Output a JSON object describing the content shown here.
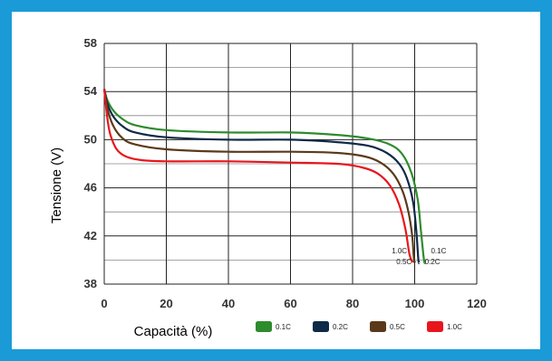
{
  "colors": {
    "frame": "#1a9bd7",
    "grid": "#222222",
    "gridMinor": "#888888",
    "series": [
      "#2e8b2e",
      "#0e2a47",
      "#5a3a1a",
      "#e8161c"
    ]
  },
  "chart_data": {
    "type": "line",
    "title": "",
    "xlabel": "Capacità (%)",
    "ylabel": "Tensione (V)",
    "xlim": [
      0,
      120
    ],
    "ylim": [
      38,
      58
    ],
    "xticks": [
      0,
      20,
      40,
      60,
      80,
      100,
      120
    ],
    "yticks": [
      38,
      42,
      46,
      50,
      54,
      58
    ],
    "grid": true,
    "legend_position": "bottom",
    "series": [
      {
        "name": "0.1C",
        "end_label": "0.1C",
        "x": [
          0,
          1,
          3,
          6,
          10,
          20,
          40,
          60,
          75,
          85,
          92,
          96,
          99,
          101,
          102,
          103,
          103.5
        ],
        "y": [
          54.2,
          53.3,
          52.4,
          51.7,
          51.2,
          50.8,
          50.6,
          50.6,
          50.4,
          50.1,
          49.6,
          48.8,
          47.2,
          45,
          42.5,
          40,
          39.8
        ]
      },
      {
        "name": "0.2C",
        "end_label": "0.2C",
        "x": [
          0,
          1,
          3,
          6,
          10,
          20,
          40,
          60,
          75,
          85,
          91,
          95,
          97.5,
          99.5,
          100.5,
          101.2,
          101.5
        ],
        "y": [
          54.2,
          53,
          51.9,
          51.1,
          50.6,
          50.2,
          50,
          50,
          49.8,
          49.5,
          48.9,
          48,
          46.8,
          44.8,
          42.5,
          40,
          39.8
        ]
      },
      {
        "name": "0.5C",
        "end_label": "0.5C",
        "x": [
          0,
          1,
          3,
          6,
          10,
          20,
          40,
          60,
          75,
          84,
          89,
          93,
          96,
          98,
          99.2,
          99.8,
          100.2
        ],
        "y": [
          54.2,
          52.6,
          51.1,
          50.1,
          49.6,
          49.2,
          49,
          49,
          48.9,
          48.6,
          48.1,
          47.2,
          45.8,
          44,
          42,
          40,
          39.8
        ]
      },
      {
        "name": "1.0C",
        "end_label": "1.0C",
        "x": [
          0,
          1,
          2,
          4,
          7,
          12,
          20,
          40,
          60,
          75,
          83,
          88,
          92,
          95,
          97,
          98.3,
          99.3
        ],
        "y": [
          54.2,
          51.8,
          50.4,
          49.2,
          48.6,
          48.3,
          48.2,
          48.2,
          48.1,
          48,
          47.7,
          47.2,
          46.2,
          44.6,
          42.6,
          40.5,
          39.8
        ]
      }
    ]
  }
}
